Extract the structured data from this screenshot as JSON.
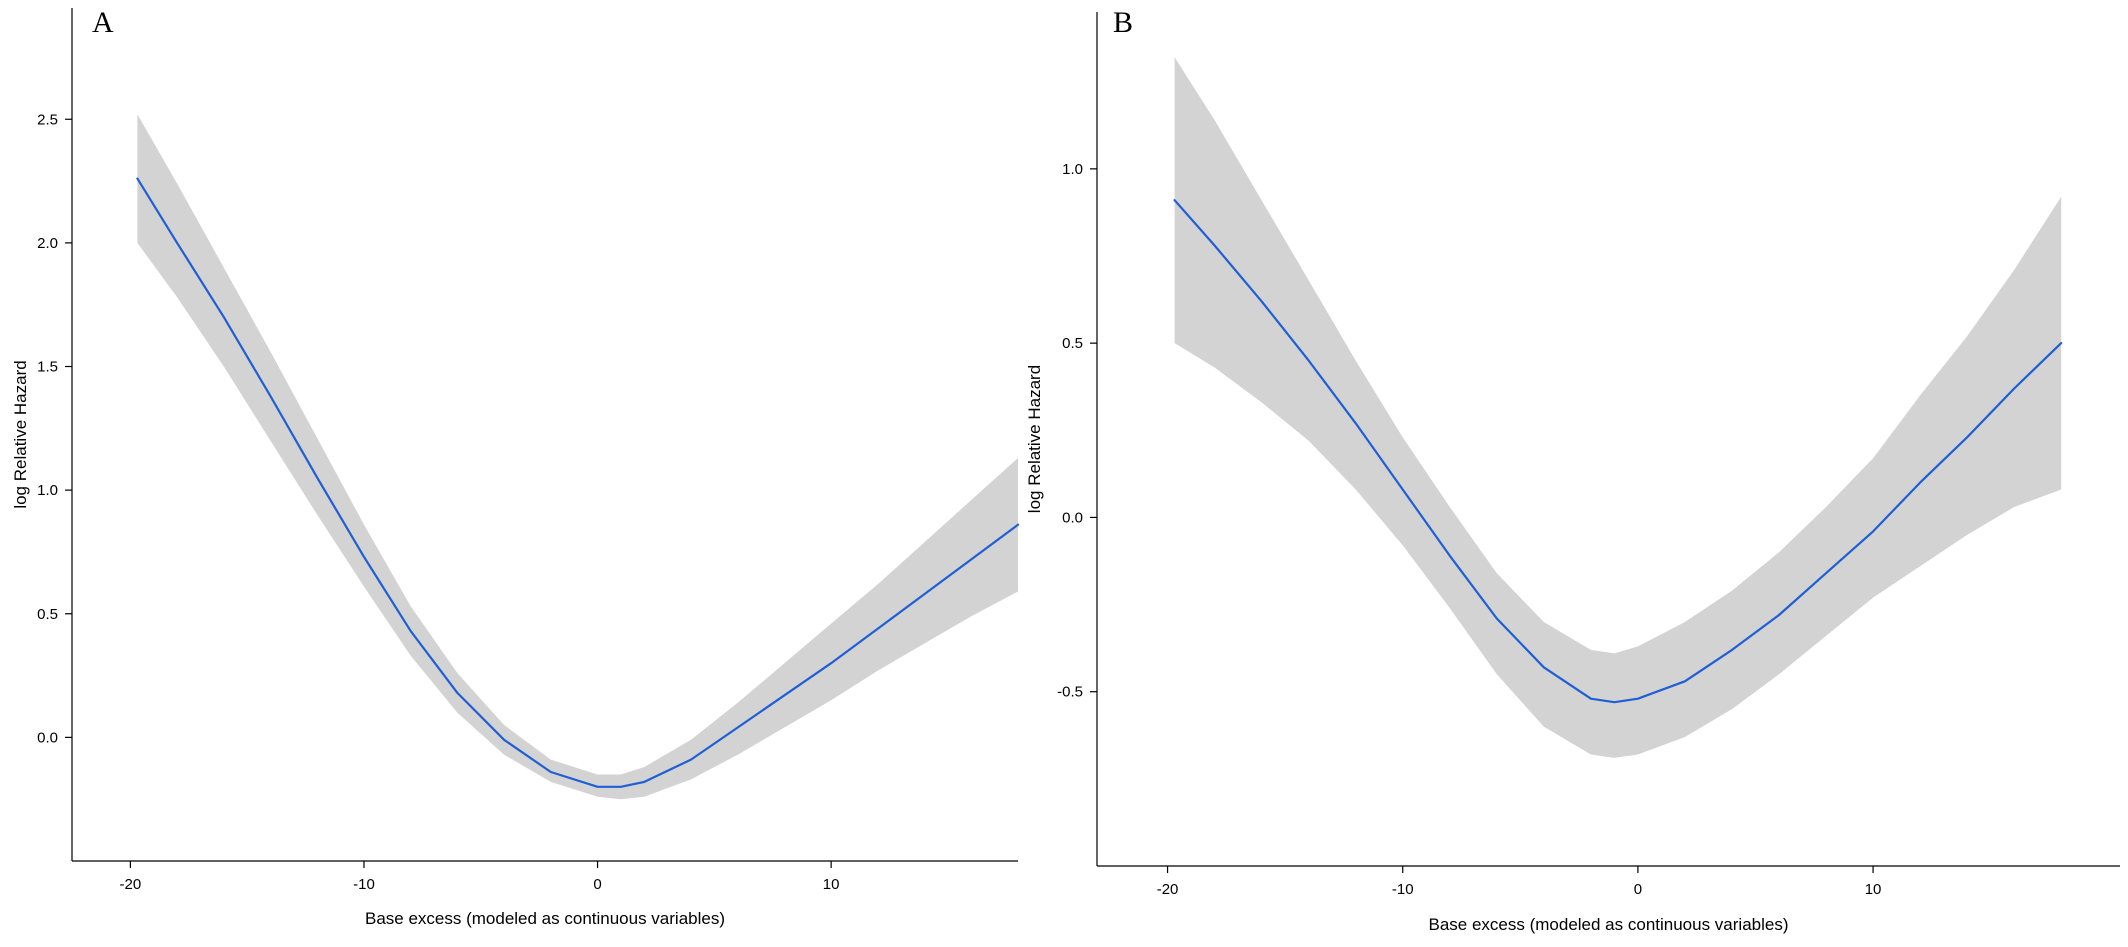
{
  "colors": {
    "line": "#1f5fd6",
    "band": "#d3d3d3",
    "axis": "#000000"
  },
  "chart_data": [
    {
      "type": "line",
      "panel_label": "A",
      "xlabel": "Base excess (modeled as continuous variables)",
      "ylabel": "log Relative Hazard",
      "xlim": [
        -22.5,
        18
      ],
      "ylim": [
        -0.5,
        2.95
      ],
      "xticks": [
        -20,
        -10,
        0,
        10
      ],
      "xtick_labels": [
        "-20",
        "-10",
        "0",
        "10"
      ],
      "yticks": [
        0.0,
        0.5,
        1.0,
        1.5,
        2.0,
        2.5
      ],
      "ytick_labels": [
        "0.0",
        "0.5",
        "1.0",
        "1.5",
        "2.0",
        "2.5"
      ],
      "grid": false,
      "legend": "none",
      "series": [
        {
          "x": [
            -19.7,
            -18,
            -16,
            -14,
            -12,
            -10,
            -8,
            -6,
            -4,
            -2,
            0,
            1,
            2,
            4,
            6,
            8,
            10,
            12,
            14,
            16,
            18
          ],
          "y": [
            2.26,
            2.0,
            1.7,
            1.38,
            1.05,
            0.73,
            0.43,
            0.18,
            -0.01,
            -0.14,
            -0.2,
            -0.2,
            -0.18,
            -0.09,
            0.04,
            0.17,
            0.3,
            0.44,
            0.58,
            0.72,
            0.86
          ],
          "lower": [
            2.0,
            1.78,
            1.5,
            1.2,
            0.9,
            0.61,
            0.33,
            0.1,
            -0.07,
            -0.18,
            -0.24,
            -0.25,
            -0.24,
            -0.17,
            -0.07,
            0.04,
            0.15,
            0.27,
            0.38,
            0.49,
            0.59
          ],
          "upper": [
            2.52,
            2.24,
            1.9,
            1.56,
            1.21,
            0.86,
            0.53,
            0.26,
            0.05,
            -0.09,
            -0.15,
            -0.15,
            -0.12,
            -0.01,
            0.14,
            0.3,
            0.46,
            0.62,
            0.79,
            0.96,
            1.13
          ]
        }
      ]
    },
    {
      "type": "line",
      "panel_label": "B",
      "xlabel": "Base excess (modeled as continuous variables)",
      "ylabel": "log Relative Hazard",
      "xlim": [
        -23,
        20.5
      ],
      "ylim": [
        -1.0,
        1.45
      ],
      "xticks": [
        -20,
        -10,
        0,
        10
      ],
      "xtick_labels": [
        "-20",
        "-10",
        "0",
        "10"
      ],
      "yticks": [
        -0.5,
        0.0,
        0.5,
        1.0
      ],
      "ytick_labels": [
        "-0.5",
        "0.0",
        "0.5",
        "1.0"
      ],
      "grid": false,
      "legend": "none",
      "series": [
        {
          "x": [
            -19.7,
            -18,
            -16,
            -14,
            -12,
            -10,
            -8,
            -6,
            -4,
            -2,
            -1,
            0,
            2,
            4,
            6,
            8,
            10,
            12,
            14,
            16,
            18
          ],
          "y": [
            0.91,
            0.78,
            0.62,
            0.45,
            0.27,
            0.08,
            -0.11,
            -0.29,
            -0.43,
            -0.52,
            -0.53,
            -0.52,
            -0.47,
            -0.38,
            -0.28,
            -0.16,
            -0.04,
            0.1,
            0.23,
            0.37,
            0.5
          ],
          "lower": [
            0.5,
            0.43,
            0.33,
            0.22,
            0.08,
            -0.08,
            -0.26,
            -0.45,
            -0.6,
            -0.68,
            -0.69,
            -0.68,
            -0.63,
            -0.55,
            -0.45,
            -0.34,
            -0.23,
            -0.14,
            -0.05,
            0.03,
            0.08
          ],
          "upper": [
            1.32,
            1.14,
            0.91,
            0.68,
            0.45,
            0.23,
            0.03,
            -0.16,
            -0.3,
            -0.38,
            -0.39,
            -0.37,
            -0.3,
            -0.21,
            -0.1,
            0.03,
            0.17,
            0.35,
            0.52,
            0.71,
            0.92
          ]
        }
      ]
    }
  ]
}
